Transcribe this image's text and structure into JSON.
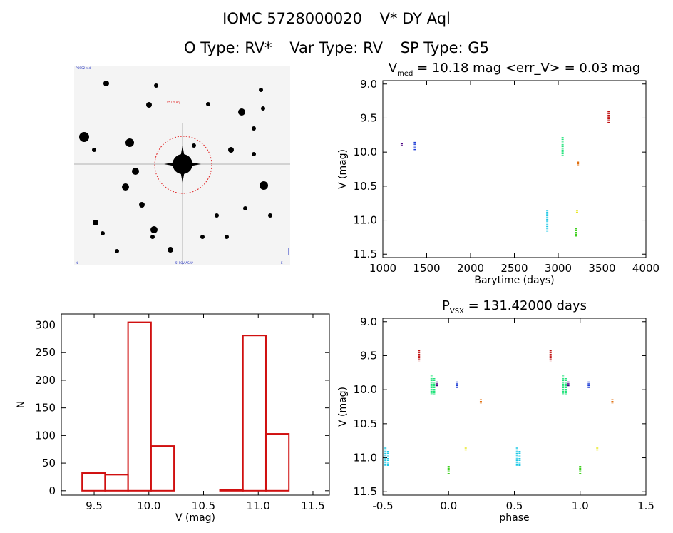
{
  "header": {
    "id": "IOMC 5728000020",
    "name": "V* DY Aql",
    "otype": "O Type: RV*",
    "vartype": "Var Type: RV",
    "sptype": "SP Type: G5"
  },
  "sky_image": {
    "label_top_left": "POSS2 red",
    "label_target": "V* DY Aql",
    "label_bottom_center": "5' FOV ASAP",
    "label_bottom_left": "N",
    "label_bottom_right": "E"
  },
  "chart_data": [
    {
      "type": "scatter",
      "title": "V_med = 10.18 mag <err_V> = 0.03 mag",
      "title_parts": {
        "v": "V",
        "sub": "med",
        "rest": " = 10.18 mag <err_V> = 0.03 mag"
      },
      "xlabel": "Barytime (days)",
      "ylabel": "V (mag)",
      "xlim": [
        1000,
        4000
      ],
      "ylim": [
        11.55,
        8.95
      ],
      "y_inverted": true,
      "xticks": [
        1000,
        1500,
        2000,
        2500,
        3000,
        3500,
        4000
      ],
      "yticks": [
        9.0,
        9.5,
        10.0,
        10.5,
        11.0,
        11.5
      ],
      "series": [
        {
          "color": "#4b0082",
          "x": 1215,
          "y": [
            9.87,
            9.92
          ]
        },
        {
          "color": "#1f3fd6",
          "x": 1365,
          "y": [
            9.85,
            9.98
          ]
        },
        {
          "color": "#1ec8e6",
          "x": 2875,
          "y": [
            10.85,
            11.17
          ]
        },
        {
          "color": "#20e27a",
          "x": 3050,
          "y": [
            9.78,
            10.05
          ]
        },
        {
          "color": "#e07010",
          "x": 3225,
          "y": [
            10.14,
            10.2
          ]
        },
        {
          "color": "#e8e820",
          "x": 3215,
          "y": [
            10.85,
            10.9
          ]
        },
        {
          "color": "#40d020",
          "x": 3205,
          "y": [
            11.12,
            11.25
          ]
        },
        {
          "color": "#c01010",
          "x": 3575,
          "y": [
            9.4,
            9.58
          ]
        }
      ]
    },
    {
      "type": "bar",
      "title": "",
      "xlabel": "V (mag)",
      "ylabel": "N",
      "xlim": [
        9.2,
        11.65
      ],
      "ylim": [
        -8,
        320
      ],
      "xticks": [
        9.5,
        10.0,
        10.5,
        11.0,
        11.5
      ],
      "yticks": [
        0,
        50,
        100,
        150,
        200,
        250,
        300
      ],
      "bin_edges": [
        9.39,
        9.6,
        9.81,
        10.02,
        10.23,
        10.44,
        10.65,
        10.86,
        11.07,
        11.28
      ],
      "values": [
        32,
        29,
        305,
        81,
        0,
        0,
        2,
        281,
        103
      ],
      "color": "#d01010"
    },
    {
      "type": "scatter",
      "title": "P_VSX = 131.42000 days",
      "title_parts": {
        "v": "P",
        "sub": "VSX",
        "rest": " = 131.42000 days"
      },
      "xlabel": "phase",
      "ylabel": "V (mag)",
      "xlim": [
        -0.5,
        1.5
      ],
      "ylim": [
        11.55,
        8.95
      ],
      "y_inverted": true,
      "xticks": [
        -0.5,
        0.0,
        0.5,
        1.0,
        1.5
      ],
      "yticks": [
        9.0,
        9.5,
        10.0,
        10.5,
        11.0,
        11.5
      ],
      "series": [
        {
          "color": "#c01010",
          "x": [
            -0.225,
            0.775
          ],
          "y": [
            9.42,
            9.58
          ]
        },
        {
          "color": "#20e27a",
          "x": [
            -0.13,
            0.87
          ],
          "y": [
            9.78,
            10.08
          ]
        },
        {
          "color": "#4b0082",
          "x": [
            -0.09,
            0.91
          ],
          "y": [
            9.88,
            9.95
          ]
        },
        {
          "color": "#1f3fd6",
          "x": [
            0.065,
            1.065
          ],
          "y": [
            9.88,
            9.98
          ]
        },
        {
          "color": "#e07010",
          "x": [
            0.245,
            1.245
          ],
          "y": [
            10.14,
            10.2
          ]
        },
        {
          "color": "#1ec8e6",
          "x": [
            -0.48,
            0.52
          ],
          "y": [
            10.85,
            11.12
          ]
        },
        {
          "color": "#e8e820",
          "x": [
            0.13,
            1.13
          ],
          "y": [
            10.85,
            10.9
          ]
        },
        {
          "color": "#40d020",
          "x": [
            0.0,
            1.0
          ],
          "y": [
            11.12,
            11.25
          ]
        }
      ]
    }
  ]
}
